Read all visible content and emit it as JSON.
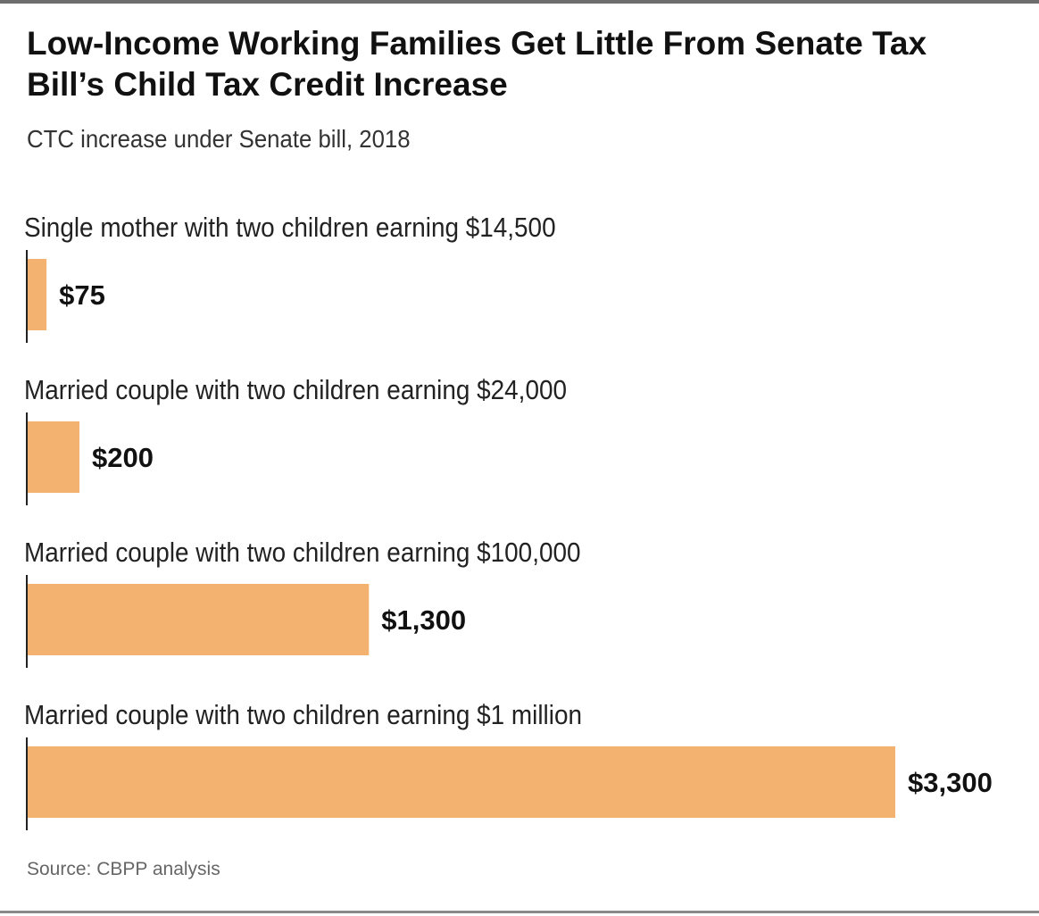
{
  "chart_data": {
    "type": "bar",
    "orientation": "horizontal",
    "title": "Low-Income Working Families Get Little From Senate Tax Bill’s Child Tax Credit Increase",
    "subtitle": "CTC increase under Senate bill, 2018",
    "categories": [
      "Single mother with two children earning $14,500",
      "Married couple with two children earning $24,000",
      "Married couple with two children earning $100,000",
      "Married couple with two children earning $1 million"
    ],
    "values": [
      75,
      200,
      1300,
      3300
    ],
    "value_labels": [
      "$75",
      "$200",
      "$1,300",
      "$3,300"
    ],
    "xlim": [
      0,
      3300
    ],
    "grid": false,
    "legend": "none",
    "bar_color": "#f3b26f",
    "source": "Source: CBPP analysis"
  }
}
